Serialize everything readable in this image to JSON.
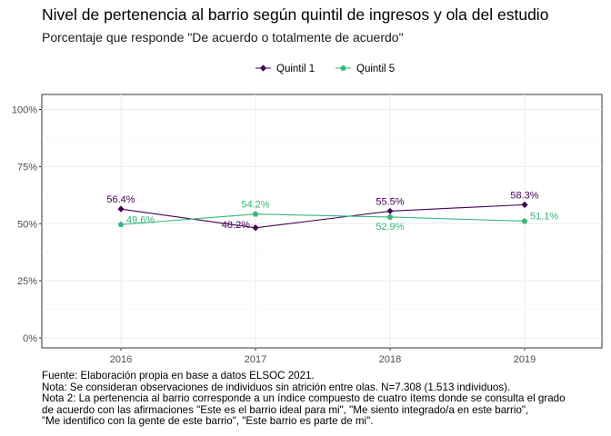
{
  "header": {
    "title": "Nivel de pertenencia al barrio según quintil de ingresos y ola del estudio",
    "subtitle": "Porcentaje que responde \"De acuerdo o totalmente de acuerdo\""
  },
  "footnotes": [
    "Fuente: Elaboración propia en base a datos ELSOC 2021.",
    "Nota: Se consideran observaciones de individuos sin atrición entre olas. N=7.308 (1.513 individuos).",
    "Nota 2: La pertenencia al barrio corresponde a un índice compuesto de cuatro ítems donde se consulta el grado",
    "de acuerdo con las afirmaciones \"Este es el barrio ideal para mi\", \"Me siento integrado/a en este barrio\",",
    "\"Me identifico con la gente de este barrio\", \"Este barrio es parte de mi\"."
  ],
  "chart_data": {
    "type": "line",
    "title": "Nivel de pertenencia al barrio según quintil de ingresos y ola del estudio",
    "subtitle": "Porcentaje que responde \"De acuerdo o totalmente de acuerdo\"",
    "xlabel": "",
    "ylabel": "",
    "x": [
      "2016",
      "2017",
      "2018",
      "2019"
    ],
    "ylim": [
      0,
      100
    ],
    "yticks": [
      0,
      25,
      50,
      75,
      100
    ],
    "ytick_labels": [
      "0%",
      "25%",
      "50%",
      "75%",
      "100%"
    ],
    "grid": true,
    "legend_position": "top",
    "series": [
      {
        "name": "Quintil 1",
        "color": "#440154",
        "marker": "diamond",
        "values": [
          56.4,
          48.2,
          55.5,
          58.3
        ],
        "labels": [
          "56.4%",
          "48.2%",
          "55.5%",
          "58.3%"
        ],
        "label_position": [
          "above",
          "left",
          "above",
          "above"
        ]
      },
      {
        "name": "Quintil 5",
        "color": "#35b779",
        "marker": "pentagon",
        "values": [
          49.6,
          54.2,
          52.9,
          51.1
        ],
        "labels": [
          "49.6%",
          "54.2%",
          "52.9%",
          "51.1%"
        ],
        "label_position": [
          "right",
          "above",
          "below",
          "right"
        ]
      }
    ]
  }
}
